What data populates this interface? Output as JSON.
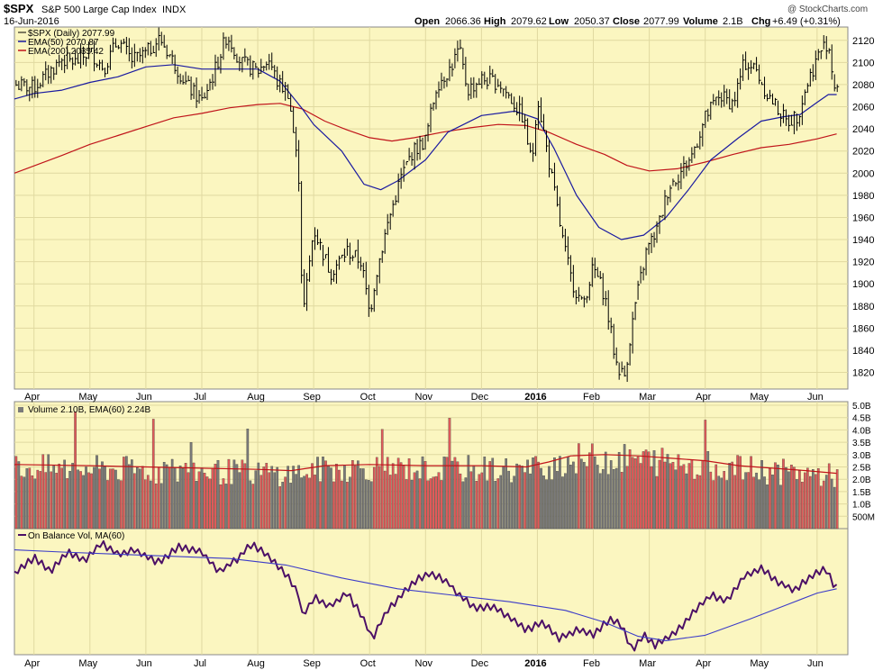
{
  "header": {
    "symbol": "$SPX",
    "name": "S&P 500 Large Cap Index",
    "exchange": "INDX",
    "date": "16-Jun-2016",
    "open_label": "Open",
    "open": "2066.36",
    "high_label": "High",
    "high": "2079.62",
    "low_label": "Low",
    "low": "2050.37",
    "close_label": "Close",
    "close": "2077.99",
    "volume_label": "Volume",
    "volume": "2.1B",
    "chg_label": "Chg",
    "chg": "+6.49 (+0.31%)",
    "watermark": "@ StockCharts.com"
  },
  "colors": {
    "panel_bg": "#fbf6c0",
    "grid": "#e0d9a0",
    "ema50": "#1a1aa0",
    "ema200": "#c0141a",
    "vol_up": "#e05a5a",
    "vol_down": "#7a7a7a",
    "obv": "#4c1066",
    "obv_ma": "#3c3cc8"
  },
  "chart_data": [
    {
      "type": "line",
      "panel": "price",
      "title": "$SPX (Daily) 2077.99",
      "legend": [
        {
          "name": "$SPX (Daily) 2077.99",
          "color": "#000000"
        },
        {
          "name": "EMA(50) 2070.87",
          "color": "#1a1aa0"
        },
        {
          "name": "EMA(200) 2035.42",
          "color": "#c0141a"
        }
      ],
      "yticks": [
        "2120",
        "2100",
        "2080",
        "2060",
        "2040",
        "2020",
        "2000",
        "1980",
        "1960",
        "1940",
        "1920",
        "1900",
        "1880",
        "1860",
        "1840",
        "1820"
      ],
      "ylim": [
        1805,
        2132
      ],
      "xticks": [
        {
          "label": "Apr",
          "x": 0.0
        },
        {
          "label": "May",
          "x": 1.0
        },
        {
          "label": "Jun",
          "x": 2.0
        },
        {
          "label": "Jul",
          "x": 3.0
        },
        {
          "label": "Aug",
          "x": 4.0
        },
        {
          "label": "Sep",
          "x": 5.0
        },
        {
          "label": "Oct",
          "x": 6.0
        },
        {
          "label": "Nov",
          "x": 7.0
        },
        {
          "label": "Dec",
          "x": 8.0
        },
        {
          "label": "2016",
          "x": 9.0,
          "bold": true
        },
        {
          "label": "Feb",
          "x": 10.0
        },
        {
          "label": "Mar",
          "x": 11.0
        },
        {
          "label": "Apr",
          "x": 12.0
        },
        {
          "label": "May",
          "x": 13.0
        },
        {
          "label": "Jun",
          "x": 14.0
        }
      ],
      "xlim": [
        -0.35,
        14.55
      ],
      "series": [
        {
          "name": "EMA(50)",
          "values": [
            [
              -0.35,
              2067
            ],
            [
              0.0,
              2072
            ],
            [
              0.5,
              2075
            ],
            [
              1.0,
              2082
            ],
            [
              1.5,
              2087
            ],
            [
              2.0,
              2096
            ],
            [
              2.5,
              2098
            ],
            [
              3.0,
              2094
            ],
            [
              3.5,
              2094
            ],
            [
              4.0,
              2094
            ],
            [
              4.4,
              2083
            ],
            [
              4.8,
              2058
            ],
            [
              5.0,
              2044
            ],
            [
              5.5,
              2020
            ],
            [
              5.9,
              1990
            ],
            [
              6.2,
              1985
            ],
            [
              6.5,
              1993
            ],
            [
              7.0,
              2012
            ],
            [
              7.4,
              2037
            ],
            [
              8.0,
              2052
            ],
            [
              8.6,
              2056
            ],
            [
              9.0,
              2049
            ],
            [
              9.3,
              2022
            ],
            [
              9.7,
              1980
            ],
            [
              10.1,
              1951
            ],
            [
              10.5,
              1940
            ],
            [
              10.9,
              1944
            ],
            [
              11.3,
              1960
            ],
            [
              11.7,
              1985
            ],
            [
              12.1,
              2012
            ],
            [
              12.6,
              2032
            ],
            [
              13.0,
              2047
            ],
            [
              13.4,
              2051
            ],
            [
              13.7,
              2053
            ],
            [
              14.0,
              2064
            ],
            [
              14.2,
              2071
            ],
            [
              14.35,
              2071
            ]
          ]
        },
        {
          "name": "EMA(200)",
          "values": [
            [
              -0.35,
              2000
            ],
            [
              0.5,
              2016
            ],
            [
              1.0,
              2026
            ],
            [
              1.5,
              2034
            ],
            [
              2.0,
              2042
            ],
            [
              2.5,
              2050
            ],
            [
              3.0,
              2054
            ],
            [
              3.5,
              2059
            ],
            [
              4.0,
              2062
            ],
            [
              4.4,
              2063
            ],
            [
              4.8,
              2058
            ],
            [
              5.2,
              2047
            ],
            [
              5.6,
              2039
            ],
            [
              6.0,
              2032
            ],
            [
              6.4,
              2029
            ],
            [
              6.8,
              2032
            ],
            [
              7.3,
              2037
            ],
            [
              7.8,
              2041
            ],
            [
              8.3,
              2044
            ],
            [
              8.8,
              2043
            ],
            [
              9.2,
              2037
            ],
            [
              9.7,
              2026
            ],
            [
              10.2,
              2017
            ],
            [
              10.6,
              2007
            ],
            [
              11.0,
              2002
            ],
            [
              11.5,
              2004
            ],
            [
              12.0,
              2010
            ],
            [
              12.5,
              2017
            ],
            [
              13.0,
              2023
            ],
            [
              13.5,
              2026
            ],
            [
              14.0,
              2031
            ],
            [
              14.35,
              2035.42
            ]
          ]
        }
      ],
      "price_path": [
        [
          -0.35,
          2080
        ],
        [
          0.0,
          2077
        ],
        [
          0.25,
          2090
        ],
        [
          0.5,
          2103
        ],
        [
          0.75,
          2100
        ],
        [
          1.0,
          2110
        ],
        [
          1.25,
          2095
        ],
        [
          1.5,
          2120
        ],
        [
          1.75,
          2102
        ],
        [
          2.0,
          2108
        ],
        [
          2.25,
          2122
        ],
        [
          2.5,
          2100
        ],
        [
          2.75,
          2078
        ],
        [
          3.0,
          2065
        ],
        [
          3.2,
          2088
        ],
        [
          3.45,
          2125
        ],
        [
          3.7,
          2100
        ],
        [
          4.0,
          2092
        ],
        [
          4.2,
          2103
        ],
        [
          4.35,
          2082
        ],
        [
          4.55,
          2073
        ],
        [
          4.75,
          1990
        ],
        [
          4.8,
          1867
        ],
        [
          5.0,
          1950
        ],
        [
          5.3,
          1910
        ],
        [
          5.6,
          1930
        ],
        [
          5.85,
          1920
        ],
        [
          6.0,
          1872
        ],
        [
          6.1,
          1905
        ],
        [
          6.3,
          1950
        ],
        [
          6.55,
          1995
        ],
        [
          6.75,
          2018
        ],
        [
          7.0,
          2030
        ],
        [
          7.2,
          2080
        ],
        [
          7.45,
          2095
        ],
        [
          7.6,
          2112
        ],
        [
          7.75,
          2075
        ],
        [
          8.0,
          2085
        ],
        [
          8.3,
          2082
        ],
        [
          8.5,
          2069
        ],
        [
          8.75,
          2050
        ],
        [
          8.9,
          2007
        ],
        [
          9.0,
          2070
        ],
        [
          9.2,
          2012
        ],
        [
          9.45,
          1940
        ],
        [
          9.6,
          1905
        ],
        [
          9.8,
          1880
        ],
        [
          10.0,
          1915
        ],
        [
          10.2,
          1890
        ],
        [
          10.4,
          1830
        ],
        [
          10.55,
          1815
        ],
        [
          10.75,
          1882
        ],
        [
          10.95,
          1930
        ],
        [
          11.15,
          1950
        ],
        [
          11.35,
          1988
        ],
        [
          11.55,
          2000
        ],
        [
          11.75,
          2015
        ],
        [
          12.0,
          2050
        ],
        [
          12.25,
          2070
        ],
        [
          12.5,
          2063
        ],
        [
          12.7,
          2100
        ],
        [
          12.9,
          2094
        ],
        [
          13.1,
          2072
        ],
        [
          13.3,
          2058
        ],
        [
          13.45,
          2046
        ],
        [
          13.65,
          2052
        ],
        [
          13.85,
          2085
        ],
        [
          14.05,
          2110
        ],
        [
          14.2,
          2119
        ],
        [
          14.3,
          2080
        ],
        [
          14.35,
          2078
        ]
      ]
    },
    {
      "type": "bar",
      "panel": "volume",
      "title": "Volume 2.10B, EMA(60) 2.24B",
      "yticks": [
        "5.0B",
        "4.5B",
        "4.0B",
        "3.5B",
        "3.0B",
        "2.5B",
        "2.0B",
        "1.5B",
        "1.0B",
        "500M"
      ],
      "ylim": [
        0,
        5.0
      ],
      "xlim": [
        -0.35,
        14.55
      ],
      "current": 2.1,
      "ema60": 2.24,
      "ema60_path": [
        [
          -0.35,
          2.6
        ],
        [
          1.0,
          2.55
        ],
        [
          2.0,
          2.5
        ],
        [
          3.0,
          2.45
        ],
        [
          4.0,
          2.4
        ],
        [
          4.6,
          2.35
        ],
        [
          5.2,
          2.55
        ],
        [
          6.0,
          2.6
        ],
        [
          7.0,
          2.55
        ],
        [
          8.0,
          2.55
        ],
        [
          8.8,
          2.5
        ],
        [
          9.2,
          2.7
        ],
        [
          9.6,
          2.95
        ],
        [
          10.2,
          3.0
        ],
        [
          10.8,
          2.95
        ],
        [
          11.4,
          2.85
        ],
        [
          12.0,
          2.75
        ],
        [
          12.6,
          2.55
        ],
        [
          13.2,
          2.45
        ],
        [
          13.8,
          2.35
        ],
        [
          14.35,
          2.24
        ]
      ]
    },
    {
      "type": "line",
      "panel": "obv",
      "title": "On Balance Vol, MA(60)",
      "xlim": [
        -0.35,
        14.55
      ],
      "ylim": [
        0,
        100
      ],
      "ma_path": [
        [
          -0.35,
          92
        ],
        [
          0.5,
          90
        ],
        [
          1.5,
          88
        ],
        [
          2.5,
          86
        ],
        [
          3.5,
          84
        ],
        [
          4.5,
          78
        ],
        [
          5.5,
          66
        ],
        [
          6.5,
          56
        ],
        [
          7.5,
          50
        ],
        [
          8.5,
          44
        ],
        [
          9.5,
          36
        ],
        [
          10.2,
          25
        ],
        [
          10.8,
          12
        ],
        [
          11.3,
          8
        ],
        [
          12.0,
          13
        ],
        [
          12.8,
          28
        ],
        [
          13.5,
          42
        ],
        [
          14.0,
          52
        ],
        [
          14.35,
          56
        ]
      ],
      "obv_path": [
        [
          -0.35,
          70
        ],
        [
          0.0,
          85
        ],
        [
          0.3,
          72
        ],
        [
          0.6,
          90
        ],
        [
          0.9,
          82
        ],
        [
          1.2,
          98
        ],
        [
          1.5,
          88
        ],
        [
          1.8,
          92
        ],
        [
          2.2,
          80
        ],
        [
          2.6,
          95
        ],
        [
          3.0,
          90
        ],
        [
          3.3,
          72
        ],
        [
          3.6,
          82
        ],
        [
          3.9,
          98
        ],
        [
          4.2,
          85
        ],
        [
          4.5,
          70
        ],
        [
          4.75,
          48
        ],
        [
          4.8,
          30
        ],
        [
          5.0,
          48
        ],
        [
          5.3,
          40
        ],
        [
          5.6,
          52
        ],
        [
          5.85,
          32
        ],
        [
          6.05,
          10
        ],
        [
          6.3,
          35
        ],
        [
          6.6,
          52
        ],
        [
          6.85,
          65
        ],
        [
          7.1,
          70
        ],
        [
          7.4,
          62
        ],
        [
          7.6,
          50
        ],
        [
          7.9,
          38
        ],
        [
          8.2,
          40
        ],
        [
          8.5,
          30
        ],
        [
          8.8,
          18
        ],
        [
          9.1,
          25
        ],
        [
          9.4,
          10
        ],
        [
          9.7,
          18
        ],
        [
          10.0,
          14
        ],
        [
          10.3,
          28
        ],
        [
          10.5,
          22
        ],
        [
          10.7,
          -2
        ],
        [
          10.9,
          14
        ],
        [
          11.1,
          4
        ],
        [
          11.3,
          10
        ],
        [
          11.55,
          20
        ],
        [
          11.8,
          35
        ],
        [
          12.1,
          50
        ],
        [
          12.4,
          45
        ],
        [
          12.7,
          68
        ],
        [
          13.0,
          75
        ],
        [
          13.3,
          62
        ],
        [
          13.6,
          55
        ],
        [
          13.9,
          68
        ],
        [
          14.15,
          75
        ],
        [
          14.3,
          60
        ],
        [
          14.35,
          58
        ]
      ]
    }
  ]
}
